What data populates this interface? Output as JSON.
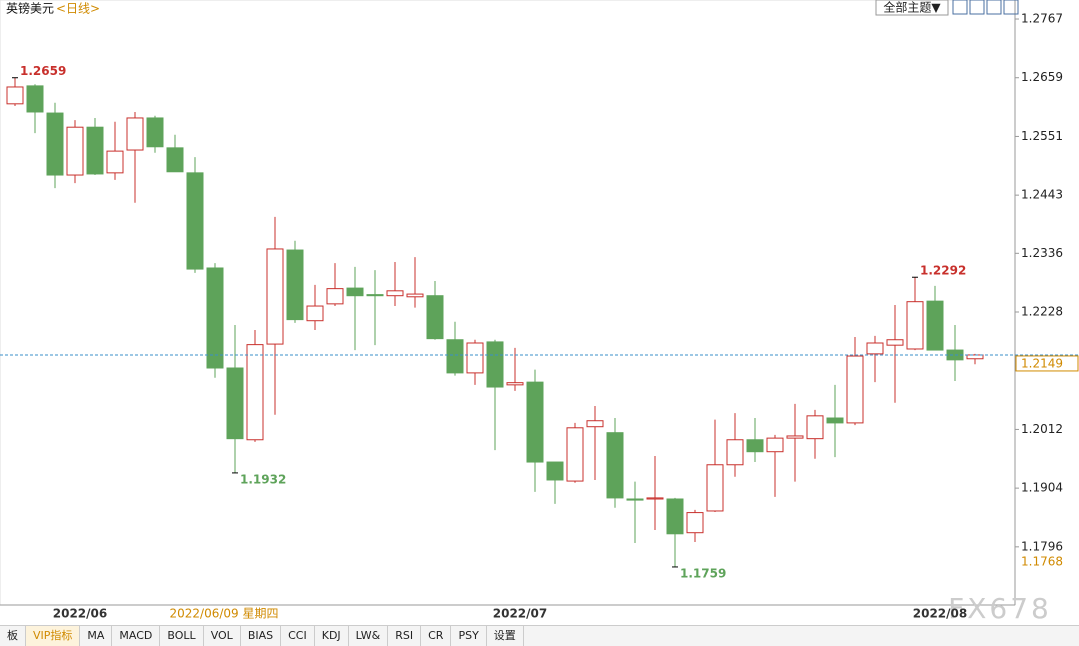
{
  "header": {
    "title": "英镑美元",
    "period": "<日线>",
    "theme_button": "全部主题▼"
  },
  "chart_data": {
    "type": "candlestick",
    "categories": [
      null,
      null,
      null,
      "2022/06",
      null,
      null,
      null,
      null,
      null,
      null,
      null,
      null,
      null,
      null,
      null,
      null,
      null,
      null,
      null,
      null,
      null,
      null,
      null,
      null,
      null,
      "2022/07",
      null,
      null,
      null,
      null,
      null,
      null,
      null,
      null,
      null,
      null,
      null,
      null,
      null,
      null,
      null,
      null,
      null,
      null,
      null,
      null,
      "2022/08",
      null,
      null
    ],
    "open": [
      1.2611,
      1.2644,
      1.2594,
      1.248,
      1.2568,
      1.2484,
      1.2526,
      1.2585,
      1.253,
      1.2484,
      1.2309,
      1.2125,
      1.1993,
      1.2169,
      1.2342,
      1.2212,
      1.2243,
      1.2272,
      1.226,
      1.2258,
      1.2256,
      1.2258,
      1.2177,
      1.2116,
      1.2173,
      1.2094,
      1.2099,
      1.1952,
      1.1917,
      1.2017,
      1.2006,
      1.1884,
      1.1884,
      1.1884,
      1.1822,
      1.1862,
      1.1947,
      1.1993,
      1.1971,
      1.1996,
      1.1995,
      1.2033,
      1.2024,
      1.2151,
      1.2167,
      1.216,
      1.2248,
      1.2158,
      1.2142
    ],
    "high": [
      1.2659,
      1.2647,
      1.2613,
      1.2581,
      1.2585,
      1.2578,
      1.2596,
      1.2589,
      1.2554,
      1.2513,
      1.2318,
      1.2204,
      1.2195,
      1.2403,
      1.2359,
      1.2278,
      1.2318,
      1.2311,
      1.2305,
      1.232,
      1.2329,
      1.2285,
      1.221,
      1.2177,
      1.2177,
      1.2162,
      1.2122,
      1.1952,
      1.2024,
      1.2055,
      1.2033,
      1.1916,
      1.1963,
      1.1886,
      1.1864,
      1.203,
      1.2042,
      1.2033,
      1.2002,
      1.2059,
      1.2048,
      1.2094,
      1.2182,
      1.2184,
      1.2241,
      1.2292,
      1.2276,
      1.2204,
      1.2151
    ],
    "low": [
      1.2607,
      1.2557,
      1.2456,
      1.2465,
      1.248,
      1.2471,
      1.2429,
      1.2521,
      1.2486,
      1.23,
      1.2107,
      1.1932,
      1.1989,
      1.2039,
      1.2208,
      1.2195,
      1.2239,
      1.2158,
      1.2167,
      1.2239,
      1.2236,
      1.2177,
      1.2111,
      1.2094,
      1.1974,
      1.2083,
      1.1897,
      1.1875,
      1.1914,
      1.1919,
      1.1868,
      1.1803,
      1.1827,
      1.1759,
      1.1805,
      1.186,
      1.1925,
      1.1952,
      1.1888,
      1.1916,
      1.1958,
      1.1961,
      1.202,
      1.2099,
      1.2061,
      1.2158,
      1.2158,
      1.2101,
      1.2132
    ],
    "close": [
      1.2642,
      1.2596,
      1.248,
      1.2568,
      1.2482,
      1.2524,
      1.2585,
      1.2532,
      1.2486,
      1.2307,
      1.2125,
      1.1995,
      1.2168,
      1.2344,
      1.2214,
      1.2239,
      1.2271,
      1.2258,
      1.2258,
      1.2267,
      1.2261,
      1.2179,
      1.2116,
      1.2171,
      1.209,
      1.2098,
      1.1952,
      1.1919,
      1.2015,
      1.2028,
      1.1886,
      1.1882,
      1.1886,
      1.182,
      1.1859,
      1.1947,
      1.1993,
      1.1971,
      1.1996,
      1.2,
      1.2037,
      1.2024,
      1.2147,
      1.2171,
      1.2177,
      1.2247,
      1.2158,
      1.214,
      1.2149
    ],
    "up_color": "#c8302c",
    "down_color": "#5ea35a",
    "ylim": [
      1.1689,
      1.2802
    ],
    "yticks": [
      1.2767,
      1.2659,
      1.2551,
      1.2443,
      1.2336,
      1.2228,
      1.2012,
      1.1904,
      1.1796
    ],
    "annotations": [
      1.2659,
      1.1932,
      1.1759,
      1.2292
    ],
    "last_price": 1.2149,
    "marker_price": 1.1768,
    "crosshair_label": "2022/06/09 星期四"
  },
  "indicator_tabs": [
    "板",
    "VIP指标",
    "MA",
    "MACD",
    "BOLL",
    "VOL",
    "BIAS",
    "CCI",
    "KDJ",
    "LW&",
    "RSI",
    "CR",
    "PSY",
    "设置"
  ],
  "watermark": "FX678"
}
